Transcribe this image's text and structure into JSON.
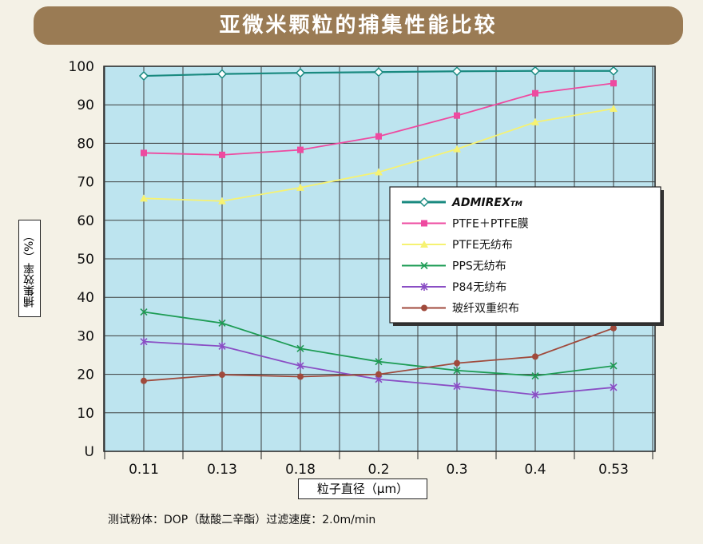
{
  "title": "亚微米颗粒的捕集性能比较",
  "note": "测试粉体：DOP（酞酸二辛酯）过滤速度：2.0m/min",
  "colors": {
    "banner": "#9a7b54",
    "plot_bg": "#bde4ef",
    "grid": "#3c3c3c"
  },
  "chart_data": {
    "type": "line",
    "title": "亚微米颗粒的捕集性能比较",
    "xlabel": "粒子直径（μm）",
    "ylabel": "捕集效率（%）",
    "categories": [
      "0.11",
      "0.13",
      "0.18",
      "0.2",
      "0.3",
      "0.4",
      "0.53"
    ],
    "ylim": [
      0,
      100
    ],
    "yticks": [
      "U",
      "10",
      "20",
      "30",
      "40",
      "50",
      "60",
      "70",
      "80",
      "90",
      "100"
    ],
    "grid": true,
    "legend_position": "right",
    "series": [
      {
        "name": "ADMIREX",
        "name_suffix": "TM",
        "color": "#1a8a80",
        "marker": "diamond",
        "values": [
          97.5,
          98,
          98.3,
          98.5,
          98.7,
          98.8,
          98.8
        ]
      },
      {
        "name": "PTFE＋PTFE膜",
        "color": "#ee4aa0",
        "marker": "square",
        "values": [
          77.5,
          77,
          78.3,
          81.8,
          87.2,
          93,
          95.6
        ]
      },
      {
        "name": "PTFE无纺布",
        "color": "#f6f272",
        "marker": "triangle",
        "values": [
          65.7,
          65,
          68.5,
          72.5,
          78.5,
          85.5,
          89
        ]
      },
      {
        "name": "PPS无纺布",
        "color": "#1e9c55",
        "marker": "x",
        "values": [
          36.2,
          33.3,
          26.7,
          23.3,
          21,
          19.6,
          22.2
        ]
      },
      {
        "name": "P84无纺布",
        "color": "#8a4ec4",
        "marker": "star",
        "values": [
          28.5,
          27.3,
          22.2,
          18.7,
          16.9,
          14.7,
          16.6
        ]
      },
      {
        "name": "玻纤双重织布",
        "color": "#a04a3c",
        "marker": "circle",
        "values": [
          18.3,
          19.9,
          19.4,
          20,
          22.9,
          24.6,
          32
        ]
      }
    ]
  }
}
